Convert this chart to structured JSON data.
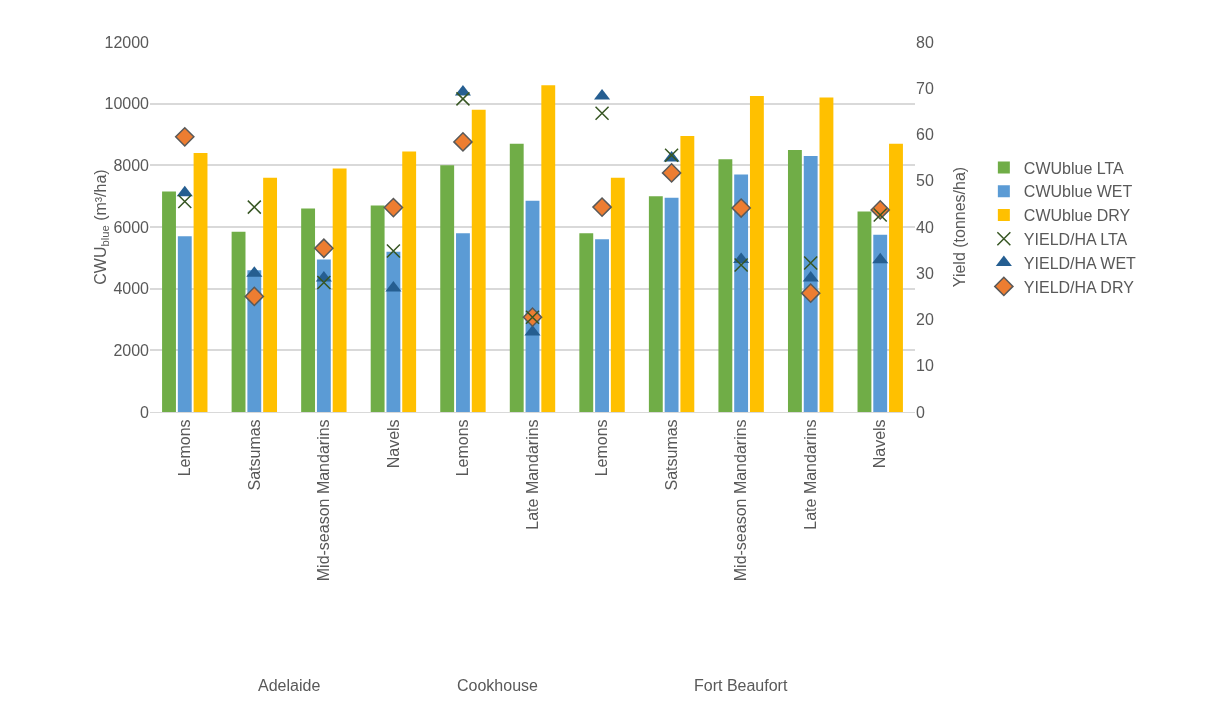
{
  "chart_data": {
    "type": "bar",
    "ylabel": "CWU$_{blue}$ (m³/ha)",
    "y2label": "Yield (tonnes/ha)",
    "categories": [
      "Lemons",
      "Satsumas",
      "Mid-season Mandarins",
      "Navels",
      "Lemons",
      "Late Mandarins",
      "Lemons",
      "Satsumas",
      "Mid-season Mandarins",
      "Late Mandarins",
      "Navels"
    ],
    "series": [
      {
        "name": "CWUblue LTA",
        "color": "#70ad47",
        "values": [
          7150,
          5850,
          6600,
          6700,
          8000,
          8700,
          5800,
          7000,
          8200,
          8500,
          6500
        ]
      },
      {
        "name": "CWUblue WET",
        "color": "#5b9bd5",
        "values": [
          5700,
          4600,
          4950,
          5200,
          5800,
          6850,
          5600,
          6950,
          7700,
          8300,
          5750
        ]
      },
      {
        "name": "CWUblue DRY",
        "color": "#ffc000",
        "values": [
          8400,
          7600,
          7900,
          8450,
          9800,
          10600,
          7600,
          8950,
          10250,
          10200,
          8700
        ]
      },
      {
        "name": "YIELD/HA LTA",
        "type": "scatter",
        "axis": "y2",
        "marker": "cross",
        "color": "#375623",
        "values": [
          45.5,
          44.3,
          28,
          34.8,
          67.7,
          20.5,
          64.6,
          55.5,
          31.8,
          32.2,
          42.6
        ]
      },
      {
        "name": "YIELD/HA WET",
        "type": "scatter",
        "axis": "y2",
        "marker": "triangle",
        "color": "#255e91",
        "values": [
          47.4,
          30,
          29,
          26.8,
          69.2,
          17.3,
          68.3,
          54.9,
          33,
          29,
          32.9
        ]
      },
      {
        "name": "YIELD/HA DRY",
        "type": "scatter",
        "axis": "y2",
        "marker": "diamond",
        "color": "#ed7d31",
        "values": [
          59.5,
          25,
          35.4,
          44.2,
          58.4,
          20.5,
          44.3,
          51.7,
          44.1,
          25.7,
          43.7
        ]
      }
    ],
    "ylim": [
      0,
      12000
    ],
    "yticks": [
      0,
      2000,
      4000,
      6000,
      8000,
      10000,
      12000
    ],
    "y2lim": [
      0,
      80
    ],
    "y2ticks": [
      0,
      10,
      20,
      30,
      40,
      50,
      60,
      70,
      80
    ],
    "annotations": [
      "Adelaide",
      "Cookhouse",
      "Fort Beaufort"
    ],
    "grid": "y",
    "legend": "right"
  }
}
